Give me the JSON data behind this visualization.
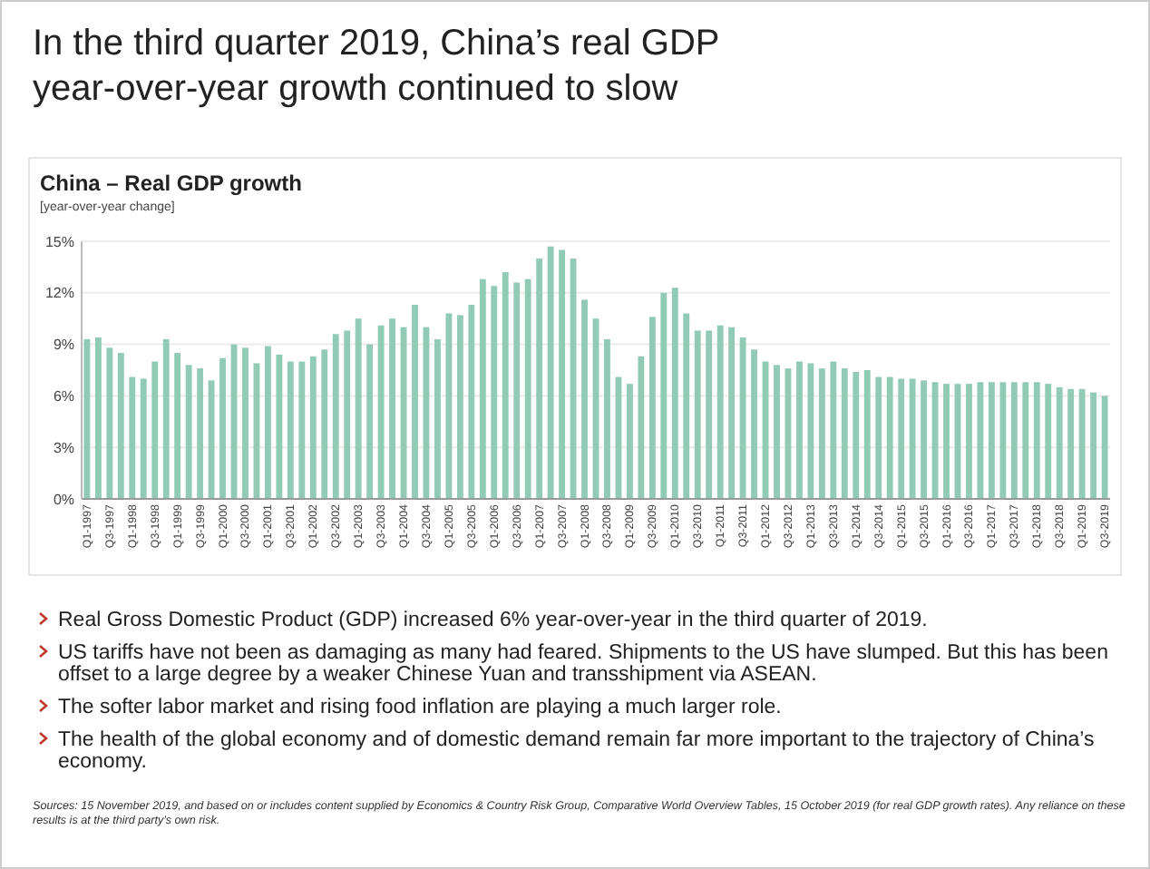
{
  "chart_data": {
    "type": "bar",
    "title": "In the third quarter 2019, China’s real GDP year-over-year growth continued to slow",
    "subtitle": "China – Real GDP growth",
    "ylabel": "[year-over-year change]",
    "categories": [
      "Q1-1997",
      null,
      "Q3-1997",
      null,
      "Q1-1998",
      null,
      "Q3-1998",
      null,
      "Q1-1999",
      null,
      "Q3-1999",
      null,
      "Q1-2000",
      null,
      "Q3-2000",
      null,
      "Q1-2001",
      null,
      "Q3-2001",
      null,
      "Q1-2002",
      null,
      "Q3-2002",
      null,
      "Q1-2003",
      null,
      "Q3-2003",
      null,
      "Q1-2004",
      null,
      "Q3-2004",
      null,
      "Q1-2005",
      null,
      "Q3-2005",
      null,
      "Q1-2006",
      null,
      "Q3-2006",
      null,
      "Q1-2007",
      null,
      "Q3-2007",
      null,
      "Q1-2008",
      null,
      "Q3-2008",
      null,
      "Q1-2009",
      null,
      "Q3-2009",
      null,
      "Q1-2010",
      null,
      "Q3-2010",
      null,
      "Q1-2011",
      null,
      "Q3-2011",
      null,
      "Q1-2012",
      null,
      "Q3-2012",
      null,
      "Q1-2013",
      null,
      "Q3-2013",
      null,
      "Q1-2014",
      null,
      "Q3-2014",
      null,
      "Q1-2015",
      null,
      "Q3-2015",
      null,
      "Q1-2016",
      null,
      "Q3-2016",
      null,
      "Q1-2017",
      null,
      "Q3-2017",
      null,
      "Q1-2018",
      null,
      "Q3-2018",
      null,
      "Q1-2019",
      null,
      "Q3-2019"
    ],
    "values": [
      9.3,
      9.4,
      8.8,
      8.5,
      7.1,
      7.0,
      8.0,
      9.3,
      8.5,
      7.8,
      7.6,
      6.9,
      8.2,
      9.0,
      8.8,
      7.9,
      8.9,
      8.4,
      8.0,
      8.0,
      8.3,
      8.7,
      9.6,
      9.8,
      10.5,
      9.0,
      10.1,
      10.5,
      10.0,
      11.3,
      10.0,
      9.3,
      10.8,
      10.7,
      11.3,
      12.8,
      12.4,
      13.2,
      12.6,
      12.8,
      14.0,
      14.7,
      14.5,
      14.0,
      11.6,
      10.5,
      9.3,
      7.1,
      6.7,
      8.3,
      10.6,
      12.0,
      12.3,
      10.8,
      9.8,
      9.8,
      10.1,
      10.0,
      9.4,
      8.7,
      8.0,
      7.8,
      7.6,
      8.0,
      7.9,
      7.6,
      8.0,
      7.6,
      7.4,
      7.5,
      7.1,
      7.1,
      7.0,
      7.0,
      6.9,
      6.8,
      6.7,
      6.7,
      6.7,
      6.8,
      6.8,
      6.8,
      6.8,
      6.8,
      6.8,
      6.7,
      6.5,
      6.4,
      6.4,
      6.2,
      6.0
    ],
    "color": "#92cbb5",
    "ylim": [
      0,
      15
    ],
    "yticks": [
      {
        "value": 0,
        "label": "0%"
      },
      {
        "value": 3,
        "label": "3%"
      },
      {
        "value": 6,
        "label": "6%"
      },
      {
        "value": 9,
        "label": "9%"
      },
      {
        "value": 12,
        "label": "12%"
      },
      {
        "value": 15,
        "label": "15%"
      }
    ],
    "grid": "y",
    "annotations": [
      "Real Gross Domestic Product (GDP) increased 6% year-over-year in the third quarter of 2019.",
      "US tariffs have not been as damaging as many had feared. Shipments to the US have slumped. But this has been offset to a large degree by a weaker Chinese Yuan and transshipment via ASEAN.",
      "The softer labor market and rising food inflation are playing a much larger role.",
      "The health of the global economy and of domestic demand remain far more important to the trajectory of China’s economy.",
      "Sources: 15 November 2019, and based on or includes content supplied by Economics & Country Risk Group, Comparative World Overview Tables, 15 October 2019 (for real GDP growth rates). Any reliance on these results is at the third party’s own risk."
    ]
  }
}
